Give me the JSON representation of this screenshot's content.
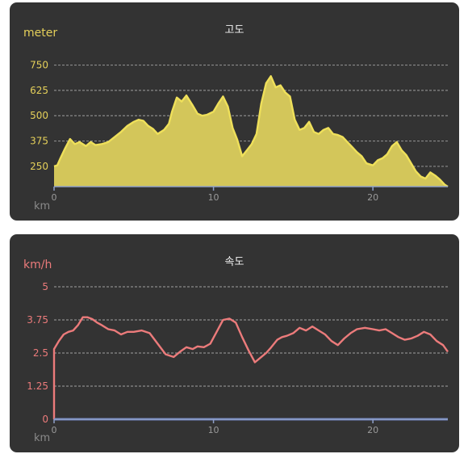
{
  "chart_data": [
    {
      "type": "area",
      "title": "고도",
      "ylabel": "meter",
      "xlabel": "km",
      "xlim": [
        0,
        24.7
      ],
      "ylim": [
        150,
        800
      ],
      "yticks": [
        "750",
        "625",
        "500",
        "375",
        "250"
      ],
      "ytick_values": [
        750,
        625,
        500,
        375,
        250
      ],
      "xticks": [
        "0",
        "10",
        "20"
      ],
      "xtick_values": [
        0,
        10,
        20
      ],
      "grid": true,
      "colors": {
        "line": "#efe05a",
        "fill": "#d3c65a",
        "tick": "#e5d05a"
      },
      "x": [
        0,
        0.2,
        0.4,
        0.7,
        1.0,
        1.3,
        1.6,
        2.0,
        2.3,
        2.6,
        3.0,
        3.4,
        3.8,
        4.2,
        4.6,
        5.0,
        5.3,
        5.6,
        5.9,
        6.2,
        6.5,
        6.9,
        7.2,
        7.4,
        7.7,
        8.0,
        8.3,
        8.7,
        9.0,
        9.3,
        9.6,
        10.0,
        10.3,
        10.6,
        10.9,
        11.2,
        11.5,
        11.8,
        12.1,
        12.4,
        12.7,
        13.0,
        13.3,
        13.6,
        13.9,
        14.2,
        14.5,
        14.8,
        15.1,
        15.4,
        15.7,
        16.0,
        16.3,
        16.6,
        16.9,
        17.2,
        17.5,
        17.8,
        18.1,
        18.4,
        18.7,
        19.0,
        19.3,
        19.6,
        20.0,
        20.3,
        20.6,
        20.9,
        21.2,
        21.5,
        21.8,
        22.1,
        22.4,
        22.7,
        23.0,
        23.3,
        23.6,
        23.9,
        24.2,
        24.5,
        24.7
      ],
      "y": [
        250,
        255,
        290,
        340,
        385,
        360,
        370,
        350,
        370,
        355,
        360,
        370,
        395,
        420,
        450,
        470,
        480,
        475,
        450,
        435,
        410,
        430,
        460,
        520,
        590,
        570,
        600,
        550,
        510,
        500,
        505,
        520,
        560,
        595,
        545,
        440,
        380,
        300,
        330,
        360,
        410,
        560,
        660,
        695,
        640,
        650,
        615,
        595,
        480,
        430,
        440,
        470,
        420,
        410,
        430,
        440,
        410,
        405,
        395,
        370,
        345,
        320,
        300,
        265,
        255,
        280,
        290,
        310,
        350,
        370,
        330,
        305,
        265,
        225,
        200,
        190,
        220,
        205,
        185,
        160,
        150
      ]
    },
    {
      "type": "line",
      "title": "속도",
      "ylabel": "km/h",
      "xlabel": "km",
      "xlim": [
        0,
        24.7
      ],
      "ylim": [
        0,
        5
      ],
      "yticks": [
        "5",
        "3.75",
        "2.5",
        "1.25",
        "0"
      ],
      "ytick_values": [
        5,
        3.75,
        2.5,
        1.25,
        0
      ],
      "xticks": [
        "0",
        "10",
        "20"
      ],
      "xtick_values": [
        0,
        10,
        20
      ],
      "grid": true,
      "colors": {
        "line": "#ec7b7b",
        "tick": "#ec7b7b",
        "zero_line": "#6d7fb8"
      },
      "x": [
        0,
        0.3,
        0.6,
        0.9,
        1.2,
        1.5,
        1.8,
        2.1,
        2.4,
        2.7,
        3.0,
        3.4,
        3.8,
        4.2,
        4.6,
        5.0,
        5.5,
        6.0,
        6.5,
        7.0,
        7.5,
        7.9,
        8.3,
        8.7,
        9.0,
        9.4,
        9.8,
        10.2,
        10.6,
        11.0,
        11.4,
        11.8,
        12.2,
        12.6,
        13.0,
        13.3,
        13.6,
        14.0,
        14.3,
        14.6,
        15.0,
        15.4,
        15.8,
        16.2,
        16.6,
        17.0,
        17.4,
        17.8,
        18.2,
        18.6,
        19.0,
        19.5,
        20.0,
        20.4,
        20.8,
        21.2,
        21.6,
        22.0,
        22.4,
        22.8,
        23.2,
        23.6,
        24.0,
        24.4,
        24.7
      ],
      "y": [
        2.65,
        2.95,
        3.2,
        3.3,
        3.35,
        3.55,
        3.85,
        3.85,
        3.78,
        3.65,
        3.55,
        3.4,
        3.35,
        3.2,
        3.3,
        3.3,
        3.35,
        3.25,
        2.85,
        2.45,
        2.35,
        2.55,
        2.72,
        2.65,
        2.75,
        2.72,
        2.85,
        3.3,
        3.75,
        3.8,
        3.65,
        3.1,
        2.6,
        2.15,
        2.35,
        2.5,
        2.7,
        3.0,
        3.1,
        3.15,
        3.25,
        3.45,
        3.35,
        3.5,
        3.35,
        3.2,
        2.95,
        2.8,
        3.05,
        3.25,
        3.4,
        3.45,
        3.4,
        3.35,
        3.4,
        3.25,
        3.1,
        3.0,
        3.05,
        3.15,
        3.3,
        3.2,
        2.95,
        2.8,
        2.55
      ]
    }
  ]
}
